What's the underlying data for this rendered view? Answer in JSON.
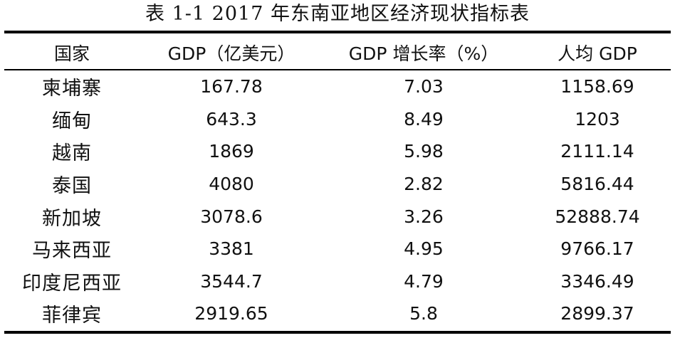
{
  "title": "表 1-1 2017 年东南亚地区经济现状指标表",
  "headers": {
    "country": "国家",
    "gdp": "GDP（亿美元）",
    "growth": "GDP 增长率（%）",
    "per_capita": "人均 GDP"
  },
  "rows": [
    {
      "country": "柬埔寨",
      "gdp": "167.78",
      "growth": "7.03",
      "per_capita": "1158.69"
    },
    {
      "country": "缅甸",
      "gdp": "643.3",
      "growth": "8.49",
      "per_capita": "1203"
    },
    {
      "country": "越南",
      "gdp": "1869",
      "growth": "5.98",
      "per_capita": "2111.14"
    },
    {
      "country": "泰国",
      "gdp": "4080",
      "growth": "2.82",
      "per_capita": "5816.44"
    },
    {
      "country": "新加坡",
      "gdp": "3078.6",
      "growth": "3.26",
      "per_capita": "52888.74"
    },
    {
      "country": "马来西亚",
      "gdp": "3381",
      "growth": "4.95",
      "per_capita": "9766.17"
    },
    {
      "country": "印度尼西亚",
      "gdp": "3544.7",
      "growth": "4.79",
      "per_capita": "3346.49"
    },
    {
      "country": "菲律宾",
      "gdp": "2919.65",
      "growth": "5.8",
      "per_capita": "2899.37"
    }
  ]
}
